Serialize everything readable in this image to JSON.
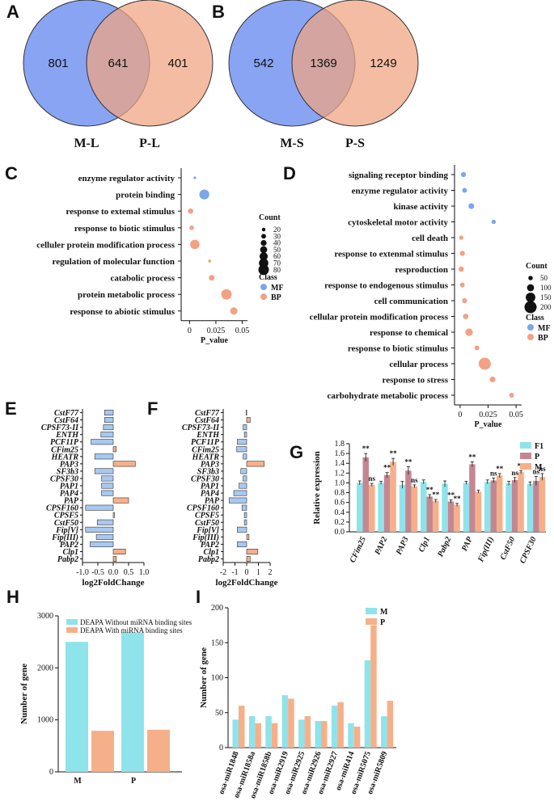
{
  "colors": {
    "blue": "#6b8df0",
    "salmon": "#f0a37f",
    "cyan": "#8fe3ea",
    "mauve": "#c48792",
    "orange": "#f6b089",
    "bar_blue": "#a8c8f0",
    "dot_blue": "#7aa7ea",
    "dot_orange": "#f2a183"
  },
  "chart_data": [
    {
      "panel": "A",
      "type": "venn",
      "sets": [
        "M-L",
        "P-L"
      ],
      "values": {
        "left_only": "801",
        "both": "641",
        "right_only": "401"
      }
    },
    {
      "panel": "B",
      "type": "venn",
      "sets": [
        "M-S",
        "P-S"
      ],
      "values": {
        "left_only": "542",
        "both": "1369",
        "right_only": "1249"
      }
    },
    {
      "panel": "C",
      "type": "scatter",
      "xlabel": "P_value",
      "xticks": [
        "0",
        "0.025",
        "0.05"
      ],
      "xlim": [
        -0.008,
        0.055
      ],
      "terms": [
        {
          "label": "enzyme regulator activity",
          "p": 0.005,
          "count": 12,
          "class": "MF"
        },
        {
          "label": "protein binding",
          "p": 0.014,
          "count": 75,
          "class": "MF"
        },
        {
          "label": "response to extemal stimulus",
          "p": 0.001,
          "count": 35,
          "class": "BP"
        },
        {
          "label": "response to biotic stimulus",
          "p": 0.002,
          "count": 28,
          "class": "BP"
        },
        {
          "label": "celluler protein modification process",
          "p": 0.005,
          "count": 70,
          "class": "BP"
        },
        {
          "label": "regulation of molecular function",
          "p": 0.019,
          "count": 15,
          "class": "BP"
        },
        {
          "label": "catabolic process",
          "p": 0.021,
          "count": 38,
          "class": "BP"
        },
        {
          "label": "protein metabolic process",
          "p": 0.035,
          "count": 80,
          "class": "BP"
        },
        {
          "label": "response to abiotic stimulus",
          "p": 0.042,
          "count": 52,
          "class": "BP"
        }
      ],
      "legend": {
        "count_title": "Count",
        "count_values": [
          "20",
          "30",
          "40",
          "50",
          "60",
          "70",
          "80"
        ],
        "class_title": "Class",
        "classes": [
          "MF",
          "BP"
        ]
      }
    },
    {
      "panel": "D",
      "type": "scatter",
      "xlabel": "P_value",
      "xticks": [
        "0",
        "0.025",
        "0.05"
      ],
      "xlim": [
        -0.005,
        0.055
      ],
      "terms": [
        {
          "label": "signaling receptor binding",
          "p": 0.003,
          "count": 60,
          "class": "MF"
        },
        {
          "label": "enzyme regulator activity",
          "p": 0.004,
          "count": 55,
          "class": "MF"
        },
        {
          "label": "kinase activity",
          "p": 0.01,
          "count": 75,
          "class": "MF"
        },
        {
          "label": "cytoskeletal motor activity",
          "p": 0.03,
          "count": 45,
          "class": "MF"
        },
        {
          "label": "cell death",
          "p": 0.001,
          "count": 45,
          "class": "BP"
        },
        {
          "label": "response to extenmal stimulus",
          "p": 0.002,
          "count": 60,
          "class": "BP"
        },
        {
          "label": "resproduction",
          "p": 0.001,
          "count": 65,
          "class": "BP"
        },
        {
          "label": "response to endogenous stimulus",
          "p": 0.002,
          "count": 55,
          "class": "BP"
        },
        {
          "label": "cell communication",
          "p": 0.004,
          "count": 60,
          "class": "BP"
        },
        {
          "label": "cellular protein modification process",
          "p": 0.005,
          "count": 70,
          "class": "BP"
        },
        {
          "label": "response to chemical",
          "p": 0.008,
          "count": 110,
          "class": "BP"
        },
        {
          "label": "response to biotic stimulus",
          "p": 0.015,
          "count": 55,
          "class": "BP"
        },
        {
          "label": "cellular process",
          "p": 0.022,
          "count": 200,
          "class": "BP"
        },
        {
          "label": "response to stress",
          "p": 0.029,
          "count": 75,
          "class": "BP"
        },
        {
          "label": "carbohydrate metabolic process",
          "p": 0.046,
          "count": 55,
          "class": "BP"
        }
      ],
      "legend": {
        "count_title": "Count",
        "count_values": [
          "50",
          "100",
          "150",
          "200"
        ],
        "class_title": "Class",
        "classes": [
          "MF",
          "BP"
        ]
      }
    },
    {
      "panel": "E",
      "type": "bar",
      "xlabel": "log2FoldChange",
      "xticks": [
        "-1.0",
        "-0.5",
        "0.0",
        "0.5",
        "1.0"
      ],
      "xlim": [
        -1.0,
        1.0
      ],
      "genes": [
        "CstF77",
        "CstF64",
        "CPSF73-II",
        "ENTH",
        "PCF11P",
        "CFim25",
        "HEATR",
        "PAP3",
        "SF3b3",
        "CPSF30",
        "PAP1",
        "PAP4",
        "PAP",
        "CPSF160",
        "CPSF5",
        "CstF50",
        "Fip[V]",
        "Fip(III)",
        "PAP2",
        "Clp1",
        "Pabp2"
      ],
      "values": [
        -0.28,
        -0.28,
        -0.32,
        -0.4,
        -0.72,
        0.1,
        -0.6,
        0.72,
        -0.6,
        -0.38,
        -0.38,
        -0.38,
        0.5,
        -0.9,
        0.04,
        -0.52,
        -0.9,
        -0.55,
        -0.75,
        0.4,
        0.1
      ]
    },
    {
      "panel": "F",
      "type": "bar",
      "xlabel": "log2FoldChange",
      "xticks": [
        "-2",
        "-1",
        "0",
        "1",
        "2"
      ],
      "xlim": [
        -2,
        2
      ],
      "genes": [
        "CstF77",
        "CstF64",
        "CPSF73-II",
        "ENTH",
        "PCF11P",
        "CFim25",
        "HEATR",
        "PAP3",
        "SF3b3",
        "CPSF30",
        "PAP1",
        "PAP4",
        "PAP",
        "CPSF160",
        "CPSF5",
        "CstF50",
        "Fip[V]",
        "Fip(III)",
        "PAP2",
        "Clp1",
        "Pabp2"
      ],
      "values": [
        -0.05,
        0.3,
        -0.3,
        -0.2,
        -0.8,
        -0.85,
        -0.3,
        1.5,
        -0.5,
        -0.3,
        -0.65,
        -1.1,
        -1.5,
        -0.4,
        -0.2,
        -0.2,
        -0.8,
        0.2,
        -0.8,
        0.95,
        0.3
      ]
    },
    {
      "panel": "G",
      "type": "bar",
      "ylabel": "Relative expression",
      "yticks": [
        "0.0",
        "0.2",
        "0.4",
        "0.6",
        "0.8",
        "1.0",
        "1.2",
        "1.4",
        "1.6",
        "1.8"
      ],
      "ylim": [
        0,
        1.8
      ],
      "categories": [
        "CFim25",
        "PAP2",
        "PAP3",
        "Clp1",
        "Pabp2",
        "PAP",
        "Fip(III)",
        "CstF50",
        "CPSF30"
      ],
      "series": [
        {
          "name": "F1",
          "values": [
            1.0,
            1.0,
            0.96,
            1.02,
            0.98,
            1.0,
            1.02,
            0.99,
            0.98
          ],
          "err": [
            0.04,
            0.03,
            0.07,
            0.04,
            0.06,
            0.03,
            0.04,
            0.04,
            0.04
          ]
        },
        {
          "name": "P",
          "values": [
            1.52,
            1.16,
            1.25,
            0.72,
            0.62,
            1.38,
            1.05,
            1.06,
            1.04
          ],
          "err": [
            0.08,
            0.05,
            0.08,
            0.04,
            0.03,
            0.05,
            0.05,
            0.05,
            0.09
          ]
        },
        {
          "name": "M",
          "values": [
            0.96,
            1.43,
            0.93,
            0.63,
            0.55,
            0.82,
            1.15,
            1.22,
            1.12
          ],
          "err": [
            0.03,
            0.07,
            0.03,
            0.03,
            0.03,
            0.03,
            0.04,
            0.03,
            0.07
          ]
        }
      ],
      "significance": [
        {
          "P": "**",
          "M": "ns"
        },
        {
          "P": "**",
          "M": "**"
        },
        {
          "P": "**",
          "M": "ns"
        },
        {
          "P": "**",
          "M": "**"
        },
        {
          "P": "**",
          "M": "**"
        },
        {
          "P": "**",
          "M": ""
        },
        {
          "P": "ns",
          "M": "**"
        },
        {
          "P": "ns",
          "M": "**"
        },
        {
          "P": "ns",
          "M": "ns"
        }
      ]
    },
    {
      "panel": "H",
      "type": "bar",
      "ylabel": "Number of gene",
      "yticks": [
        "0",
        "1000",
        "2000",
        "3000"
      ],
      "ylim": [
        0,
        3000
      ],
      "categories": [
        "M",
        "P"
      ],
      "series": [
        {
          "name": "DEAPA Without miRNA binding sites",
          "values": [
            2500,
            2680
          ]
        },
        {
          "name": "DEAPA With miRNA binding sites",
          "values": [
            790,
            810
          ]
        }
      ]
    },
    {
      "panel": "I",
      "type": "bar",
      "ylabel": "Number of gene",
      "yticks": [
        "0",
        "50",
        "100",
        "150",
        "200"
      ],
      "ylim": [
        0,
        200
      ],
      "categories": [
        "osa-miR1848",
        "osa-miR1858a",
        "osa-miR1858b",
        "osa-miR2919",
        "osa-miR2925",
        "osa-miR2926",
        "osa-miR2927",
        "osa-miR414",
        "osa-miR5075",
        "osa-miR5809"
      ],
      "series": [
        {
          "name": "M",
          "values": [
            40,
            45,
            45,
            75,
            40,
            38,
            60,
            35,
            125,
            45
          ]
        },
        {
          "name": "P",
          "values": [
            60,
            35,
            35,
            70,
            45,
            38,
            65,
            30,
            175,
            67
          ]
        }
      ]
    }
  ],
  "panel_labels": [
    "A",
    "B",
    "C",
    "D",
    "E",
    "F",
    "G",
    "H",
    "I"
  ]
}
